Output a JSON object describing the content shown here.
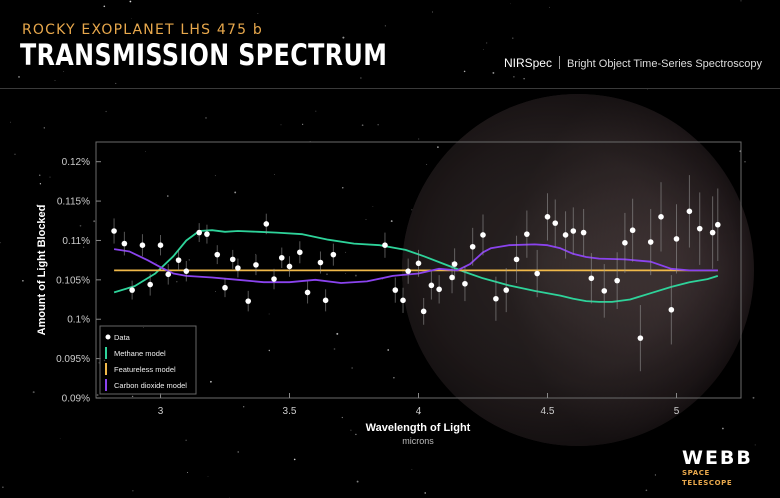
{
  "header": {
    "subtitle": "ROCKY EXOPLANET LHS 475 b",
    "title": "TRANSMISSION SPECTRUM",
    "instrument": "NIRSpec",
    "mode": "Bright Object Time-Series Spectroscopy"
  },
  "logo": {
    "main": "WEBB",
    "sub": "SPACE TELESCOPE"
  },
  "colors": {
    "background": "#000000",
    "methane": "#2ed39a",
    "featureless": "#f0b94a",
    "carbon_dioxide": "#8a43ee",
    "data": "#ffffff",
    "accent": "#e8a84c"
  },
  "chart_data": {
    "type": "scatter",
    "xlabel": "Wavelength of Light",
    "xunit": "microns",
    "ylabel": "Amount of Light Blocked",
    "xlim": [
      2.75,
      5.25
    ],
    "ylim": [
      0.09,
      0.1225
    ],
    "xticks": [
      3,
      3.5,
      4,
      4.5,
      5
    ],
    "xtick_labels": [
      "3",
      "3.5",
      "4",
      "4.5",
      "5"
    ],
    "yticks": [
      0.09,
      0.095,
      0.1,
      0.105,
      0.11,
      0.115,
      0.12
    ],
    "ytick_labels": [
      "0.09%",
      "0.095%",
      "0.1%",
      "0.105%",
      "0.11%",
      "0.115%",
      "0.12%"
    ],
    "grid": false,
    "legend_position": "bottom-left",
    "legend": [
      "Data",
      "Methane model",
      "Featureless model",
      "Carbon dioxide model"
    ],
    "data": {
      "x": [
        2.82,
        2.86,
        2.89,
        2.93,
        2.96,
        3.0,
        3.03,
        3.07,
        3.1,
        3.15,
        3.18,
        3.22,
        3.25,
        3.28,
        3.3,
        3.34,
        3.37,
        3.41,
        3.44,
        3.47,
        3.5,
        3.54,
        3.57,
        3.62,
        3.64,
        3.67,
        3.87,
        3.91,
        3.94,
        3.96,
        4.0,
        4.02,
        4.05,
        4.08,
        4.13,
        4.14,
        4.18,
        4.21,
        4.25,
        4.3,
        4.34,
        4.38,
        4.42,
        4.46,
        4.5,
        4.53,
        4.57,
        4.6,
        4.64,
        4.67,
        4.72,
        4.77,
        4.8,
        4.83,
        4.86,
        4.9,
        4.94,
        4.98,
        5.0,
        5.05,
        5.09,
        5.14,
        5.16
      ],
      "y": [
        0.1112,
        0.1096,
        0.1037,
        0.1094,
        0.1044,
        0.1094,
        0.1057,
        0.1075,
        0.1061,
        0.111,
        0.1108,
        0.1082,
        0.104,
        0.1076,
        0.1065,
        0.1023,
        0.1069,
        0.1121,
        0.1051,
        0.1078,
        0.1067,
        0.1085,
        0.1034,
        0.1072,
        0.1024,
        0.1082,
        0.1094,
        0.1037,
        0.1024,
        0.1061,
        0.1071,
        0.101,
        0.1043,
        0.1038,
        0.1053,
        0.107,
        0.1045,
        0.1092,
        0.1107,
        0.1026,
        0.1037,
        0.1076,
        0.1108,
        0.1058,
        0.113,
        0.1122,
        0.1107,
        0.1112,
        0.111,
        0.1052,
        0.1036,
        0.1049,
        0.1097,
        0.1113,
        0.0976,
        0.1098,
        0.113,
        0.1012,
        0.1102,
        0.1137,
        0.1115,
        0.111,
        0.112
      ],
      "err": [
        0.0016,
        0.0015,
        0.0012,
        0.0014,
        0.0014,
        0.0013,
        0.0013,
        0.0013,
        0.0013,
        0.0012,
        0.0012,
        0.0012,
        0.0012,
        0.0012,
        0.0012,
        0.0013,
        0.0013,
        0.0013,
        0.0013,
        0.0013,
        0.0013,
        0.0014,
        0.0014,
        0.0014,
        0.0014,
        0.0014,
        0.0016,
        0.0016,
        0.0016,
        0.0016,
        0.0017,
        0.0017,
        0.0018,
        0.0018,
        0.002,
        0.002,
        0.0022,
        0.0024,
        0.0026,
        0.0028,
        0.0028,
        0.003,
        0.003,
        0.003,
        0.003,
        0.003,
        0.003,
        0.003,
        0.003,
        0.0032,
        0.0034,
        0.0036,
        0.0038,
        0.004,
        0.0042,
        0.0042,
        0.0044,
        0.0044,
        0.0044,
        0.0046,
        0.0046,
        0.0046,
        0.0046
      ]
    },
    "models": [
      {
        "name": "Methane model",
        "x": [
          2.82,
          2.9,
          2.98,
          3.05,
          3.1,
          3.15,
          3.2,
          3.25,
          3.3,
          3.38,
          3.45,
          3.55,
          3.65,
          3.75,
          3.85,
          3.95,
          4.02,
          4.1,
          4.18,
          4.25,
          4.35,
          4.45,
          4.55,
          4.6,
          4.65,
          4.7,
          4.75,
          4.82,
          4.9,
          4.98,
          5.05,
          5.12,
          5.16
        ],
        "y": [
          0.1034,
          0.1042,
          0.1058,
          0.108,
          0.11,
          0.1112,
          0.1113,
          0.1111,
          0.1112,
          0.1111,
          0.111,
          0.1108,
          0.1101,
          0.1096,
          0.1094,
          0.1088,
          0.108,
          0.107,
          0.106,
          0.1052,
          0.1043,
          0.1036,
          0.103,
          0.1026,
          0.1023,
          0.1022,
          0.1022,
          0.1025,
          0.1033,
          0.1041,
          0.1047,
          0.1051,
          0.1055
        ]
      },
      {
        "name": "Featureless model",
        "x": [
          2.82,
          5.16
        ],
        "y": [
          0.1062,
          0.1062
        ]
      },
      {
        "name": "Carbon dioxide model",
        "x": [
          2.82,
          2.88,
          2.95,
          3.0,
          3.05,
          3.1,
          3.2,
          3.3,
          3.4,
          3.5,
          3.6,
          3.7,
          3.8,
          3.9,
          4.0,
          4.08,
          4.15,
          4.2,
          4.25,
          4.28,
          4.35,
          4.45,
          4.5,
          4.55,
          4.6,
          4.65,
          4.7,
          4.8,
          4.9,
          4.98,
          5.05,
          5.16
        ],
        "y": [
          0.1089,
          0.1086,
          0.1075,
          0.1066,
          0.1058,
          0.1055,
          0.1053,
          0.105,
          0.1047,
          0.1047,
          0.105,
          0.1046,
          0.1048,
          0.1055,
          0.1058,
          0.1064,
          0.1062,
          0.107,
          0.1085,
          0.109,
          0.1094,
          0.1095,
          0.1094,
          0.109,
          0.1083,
          0.1079,
          0.1077,
          0.1076,
          0.1073,
          0.1064,
          0.1062,
          0.1062
        ]
      }
    ]
  }
}
